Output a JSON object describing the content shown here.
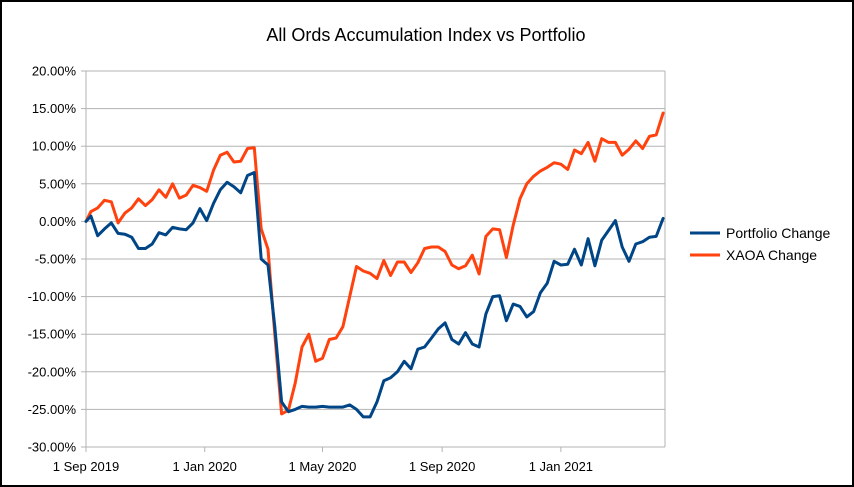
{
  "chart_data": {
    "type": "line",
    "title": "All Ords Accumulation Index vs Portfolio",
    "xlabel": "",
    "ylabel": "",
    "ylim": [
      -0.3,
      0.2
    ],
    "y_ticks": [
      0.2,
      0.15,
      0.1,
      0.05,
      0.0,
      -0.05,
      -0.1,
      -0.15,
      -0.2,
      -0.25,
      -0.3
    ],
    "y_tick_labels": [
      "20.00%",
      "15.00%",
      "10.00%",
      "5.00%",
      "0.00%",
      "-5.00%",
      "-10.00%",
      "-15.00%",
      "-20.00%",
      "-25.00%",
      "-30.00%"
    ],
    "x_range": [
      "2019-09-01",
      "2021-04-18"
    ],
    "x_ticks": [
      "2019-09-01",
      "2020-01-01",
      "2020-05-01",
      "2020-09-01",
      "2021-01-01"
    ],
    "x_tick_labels": [
      "1 Sep 2019",
      "1 Jan 2020",
      "1 May 2020",
      "1 Sep 2020",
      "1 Jan 2021"
    ],
    "grid": "horizontal",
    "legend_position": "right",
    "series": [
      {
        "name": "Portfolio Change",
        "color": "#004586",
        "points": [
          [
            "2019-09-01",
            0.0
          ],
          [
            "2019-09-06",
            0.007
          ],
          [
            "2019-09-13",
            -0.019
          ],
          [
            "2019-09-20",
            -0.01
          ],
          [
            "2019-09-27",
            -0.002
          ],
          [
            "2019-10-04",
            -0.016
          ],
          [
            "2019-10-11",
            -0.017
          ],
          [
            "2019-10-18",
            -0.021
          ],
          [
            "2019-10-25",
            -0.036
          ],
          [
            "2019-11-01",
            -0.036
          ],
          [
            "2019-11-08",
            -0.03
          ],
          [
            "2019-11-15",
            -0.015
          ],
          [
            "2019-11-22",
            -0.018
          ],
          [
            "2019-11-29",
            -0.008
          ],
          [
            "2019-12-06",
            -0.01
          ],
          [
            "2019-12-13",
            -0.011
          ],
          [
            "2019-12-20",
            -0.002
          ],
          [
            "2019-12-27",
            0.017
          ],
          [
            "2020-01-03",
            0.001
          ],
          [
            "2020-01-10",
            0.024
          ],
          [
            "2020-01-17",
            0.042
          ],
          [
            "2020-01-24",
            0.052
          ],
          [
            "2020-01-31",
            0.046
          ],
          [
            "2020-02-07",
            0.038
          ],
          [
            "2020-02-14",
            0.061
          ],
          [
            "2020-02-21",
            0.065
          ],
          [
            "2020-02-28",
            -0.05
          ],
          [
            "2020-03-06",
            -0.058
          ],
          [
            "2020-03-13",
            -0.14
          ],
          [
            "2020-03-20",
            -0.24
          ],
          [
            "2020-03-27",
            -0.253
          ],
          [
            "2020-04-03",
            -0.25
          ],
          [
            "2020-04-10",
            -0.246
          ],
          [
            "2020-04-17",
            -0.247
          ],
          [
            "2020-04-24",
            -0.247
          ],
          [
            "2020-05-01",
            -0.246
          ],
          [
            "2020-05-08",
            -0.247
          ],
          [
            "2020-05-15",
            -0.247
          ],
          [
            "2020-05-22",
            -0.247
          ],
          [
            "2020-05-29",
            -0.244
          ],
          [
            "2020-06-05",
            -0.25
          ],
          [
            "2020-06-12",
            -0.26
          ],
          [
            "2020-06-19",
            -0.26
          ],
          [
            "2020-06-26",
            -0.24
          ],
          [
            "2020-07-03",
            -0.212
          ],
          [
            "2020-07-10",
            -0.208
          ],
          [
            "2020-07-17",
            -0.2
          ],
          [
            "2020-07-24",
            -0.186
          ],
          [
            "2020-07-31",
            -0.196
          ],
          [
            "2020-08-07",
            -0.17
          ],
          [
            "2020-08-14",
            -0.167
          ],
          [
            "2020-08-21",
            -0.155
          ],
          [
            "2020-08-28",
            -0.143
          ],
          [
            "2020-09-04",
            -0.135
          ],
          [
            "2020-09-11",
            -0.157
          ],
          [
            "2020-09-18",
            -0.163
          ],
          [
            "2020-09-25",
            -0.148
          ],
          [
            "2020-10-02",
            -0.163
          ],
          [
            "2020-10-09",
            -0.167
          ],
          [
            "2020-10-16",
            -0.123
          ],
          [
            "2020-10-23",
            -0.1
          ],
          [
            "2020-10-30",
            -0.099
          ],
          [
            "2020-11-06",
            -0.132
          ],
          [
            "2020-11-13",
            -0.11
          ],
          [
            "2020-11-20",
            -0.113
          ],
          [
            "2020-11-27",
            -0.127
          ],
          [
            "2020-12-04",
            -0.12
          ],
          [
            "2020-12-11",
            -0.095
          ],
          [
            "2020-12-18",
            -0.082
          ],
          [
            "2020-12-25",
            -0.053
          ],
          [
            "2021-01-01",
            -0.058
          ],
          [
            "2021-01-08",
            -0.057
          ],
          [
            "2021-01-15",
            -0.037
          ],
          [
            "2021-01-22",
            -0.058
          ],
          [
            "2021-01-29",
            -0.023
          ],
          [
            "2021-02-05",
            -0.059
          ],
          [
            "2021-02-12",
            -0.025
          ],
          [
            "2021-02-19",
            -0.012
          ],
          [
            "2021-02-26",
            0.001
          ],
          [
            "2021-03-05",
            -0.034
          ],
          [
            "2021-03-12",
            -0.053
          ],
          [
            "2021-03-19",
            -0.03
          ],
          [
            "2021-03-26",
            -0.027
          ],
          [
            "2021-04-02",
            -0.021
          ],
          [
            "2021-04-09",
            -0.02
          ],
          [
            "2021-04-16",
            0.004
          ]
        ]
      },
      {
        "name": "XAOA Change",
        "color": "#ff420e",
        "points": [
          [
            "2019-09-01",
            0.0
          ],
          [
            "2019-09-06",
            0.013
          ],
          [
            "2019-09-13",
            0.018
          ],
          [
            "2019-09-20",
            0.028
          ],
          [
            "2019-09-27",
            0.026
          ],
          [
            "2019-10-04",
            -0.002
          ],
          [
            "2019-10-11",
            0.011
          ],
          [
            "2019-10-18",
            0.018
          ],
          [
            "2019-10-25",
            0.03
          ],
          [
            "2019-11-01",
            0.021
          ],
          [
            "2019-11-08",
            0.029
          ],
          [
            "2019-11-15",
            0.042
          ],
          [
            "2019-11-22",
            0.032
          ],
          [
            "2019-11-29",
            0.05
          ],
          [
            "2019-12-06",
            0.031
          ],
          [
            "2019-12-13",
            0.035
          ],
          [
            "2019-12-20",
            0.048
          ],
          [
            "2019-12-27",
            0.045
          ],
          [
            "2020-01-03",
            0.04
          ],
          [
            "2020-01-10",
            0.068
          ],
          [
            "2020-01-17",
            0.088
          ],
          [
            "2020-01-24",
            0.092
          ],
          [
            "2020-01-31",
            0.079
          ],
          [
            "2020-02-07",
            0.08
          ],
          [
            "2020-02-14",
            0.097
          ],
          [
            "2020-02-21",
            0.098
          ],
          [
            "2020-02-28",
            -0.01
          ],
          [
            "2020-03-06",
            -0.037
          ],
          [
            "2020-03-13",
            -0.15
          ],
          [
            "2020-03-20",
            -0.256
          ],
          [
            "2020-03-27",
            -0.251
          ],
          [
            "2020-04-03",
            -0.215
          ],
          [
            "2020-04-10",
            -0.167
          ],
          [
            "2020-04-17",
            -0.15
          ],
          [
            "2020-04-24",
            -0.186
          ],
          [
            "2020-05-01",
            -0.182
          ],
          [
            "2020-05-08",
            -0.157
          ],
          [
            "2020-05-15",
            -0.155
          ],
          [
            "2020-05-22",
            -0.14
          ],
          [
            "2020-05-29",
            -0.1
          ],
          [
            "2020-06-05",
            -0.06
          ],
          [
            "2020-06-12",
            -0.066
          ],
          [
            "2020-06-19",
            -0.069
          ],
          [
            "2020-06-26",
            -0.076
          ],
          [
            "2020-07-03",
            -0.052
          ],
          [
            "2020-07-10",
            -0.072
          ],
          [
            "2020-07-17",
            -0.054
          ],
          [
            "2020-07-24",
            -0.054
          ],
          [
            "2020-07-31",
            -0.068
          ],
          [
            "2020-08-07",
            -0.055
          ],
          [
            "2020-08-14",
            -0.036
          ],
          [
            "2020-08-21",
            -0.034
          ],
          [
            "2020-08-28",
            -0.034
          ],
          [
            "2020-09-04",
            -0.04
          ],
          [
            "2020-09-11",
            -0.058
          ],
          [
            "2020-09-18",
            -0.063
          ],
          [
            "2020-09-25",
            -0.059
          ],
          [
            "2020-10-02",
            -0.045
          ],
          [
            "2020-10-09",
            -0.07
          ],
          [
            "2020-10-16",
            -0.02
          ],
          [
            "2020-10-23",
            -0.01
          ],
          [
            "2020-10-30",
            -0.011
          ],
          [
            "2020-11-06",
            -0.048
          ],
          [
            "2020-11-13",
            -0.005
          ],
          [
            "2020-11-20",
            0.03
          ],
          [
            "2020-11-27",
            0.05
          ],
          [
            "2020-12-04",
            0.06
          ],
          [
            "2020-12-11",
            0.067
          ],
          [
            "2020-12-18",
            0.072
          ],
          [
            "2020-12-25",
            0.078
          ],
          [
            "2021-01-01",
            0.076
          ],
          [
            "2021-01-08",
            0.069
          ],
          [
            "2021-01-15",
            0.095
          ],
          [
            "2021-01-22",
            0.09
          ],
          [
            "2021-01-29",
            0.105
          ],
          [
            "2021-02-05",
            0.08
          ],
          [
            "2021-02-12",
            0.11
          ],
          [
            "2021-02-19",
            0.105
          ],
          [
            "2021-02-26",
            0.105
          ],
          [
            "2021-03-05",
            0.088
          ],
          [
            "2021-03-12",
            0.096
          ],
          [
            "2021-03-19",
            0.107
          ],
          [
            "2021-03-26",
            0.097
          ],
          [
            "2021-04-02",
            0.113
          ],
          [
            "2021-04-09",
            0.115
          ],
          [
            "2021-04-16",
            0.144
          ]
        ]
      }
    ]
  }
}
